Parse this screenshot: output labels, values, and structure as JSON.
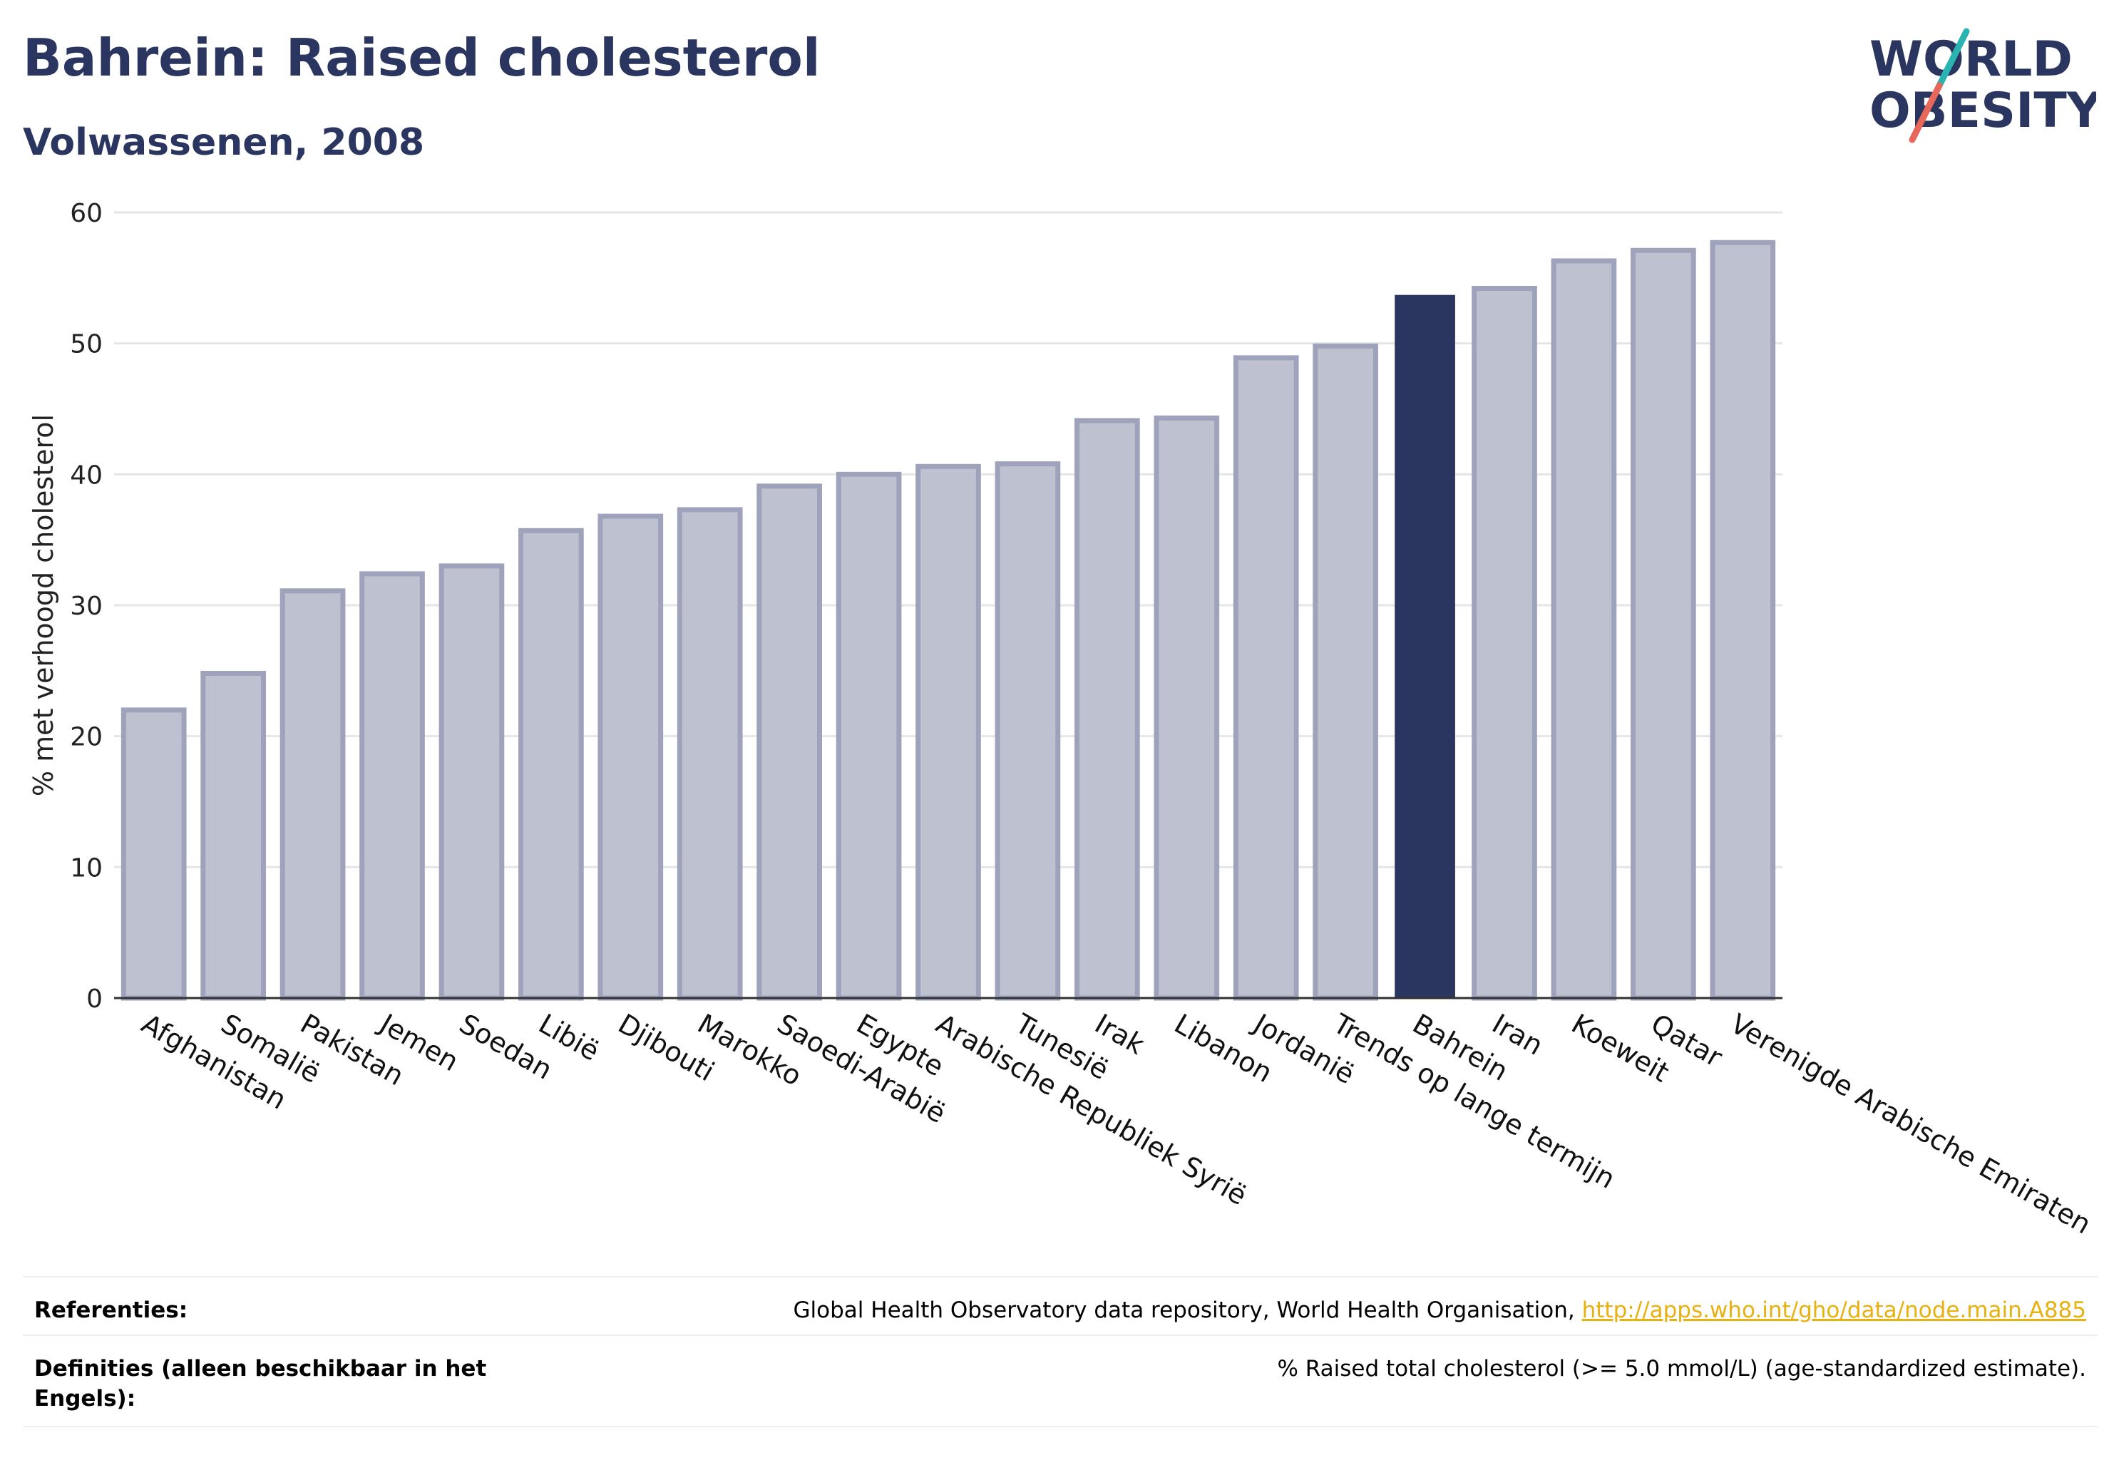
{
  "header": {
    "title": "Bahrein: Raised cholesterol",
    "subtitle": "Volwassenen, 2008"
  },
  "logo": {
    "line1": "WORLD",
    "line2": "OBESITY",
    "colors": {
      "text": "#2a3560",
      "slash_top": "#2bb3b1",
      "slash_bottom": "#e8675b"
    }
  },
  "chart_data": {
    "type": "bar",
    "ylabel": "% met verhoogd cholesterol",
    "xlabel": "",
    "ylim": [
      0,
      60
    ],
    "yticks": [
      0,
      10,
      20,
      30,
      40,
      50,
      60
    ],
    "grid": true,
    "highlight": "Bahrein",
    "colors": {
      "bar": "#bec1cf",
      "bar_border": "#9ea3bb",
      "highlight": "#2a3560",
      "grid": "#e6e6e6",
      "axis": "#333333"
    },
    "categories": [
      "Afghanistan",
      "Somalië",
      "Pakistan",
      "Jemen",
      "Soedan",
      "Libië",
      "Djibouti",
      "Marokko",
      "Saoedi-Arabië",
      "Egypte",
      "Arabische Republiek Syrië",
      "Tunesië",
      "Irak",
      "Libanon",
      "Jordanië",
      "Trends op lange termijn",
      "Bahrein",
      "Iran",
      "Koeweit",
      "Qatar",
      "Verenigde Arabische Emiraten"
    ],
    "values": [
      22.0,
      24.8,
      31.1,
      32.4,
      33.0,
      35.7,
      36.8,
      37.3,
      39.1,
      40.0,
      40.6,
      40.8,
      44.1,
      44.3,
      48.9,
      49.8,
      53.7,
      54.2,
      56.3,
      57.1,
      57.7
    ]
  },
  "references": {
    "sources_label": "Referenties:",
    "sources_text": "Global Health Observatory data repository, World Health Organisation, ",
    "sources_link": "http://apps.who.int/gho/data/node.main.A885",
    "definitions_label": "Definities (alleen beschikbaar in het Engels):",
    "definitions_text": "% Raised total cholesterol (>= 5.0 mmol/L) (age-standardized estimate)."
  }
}
